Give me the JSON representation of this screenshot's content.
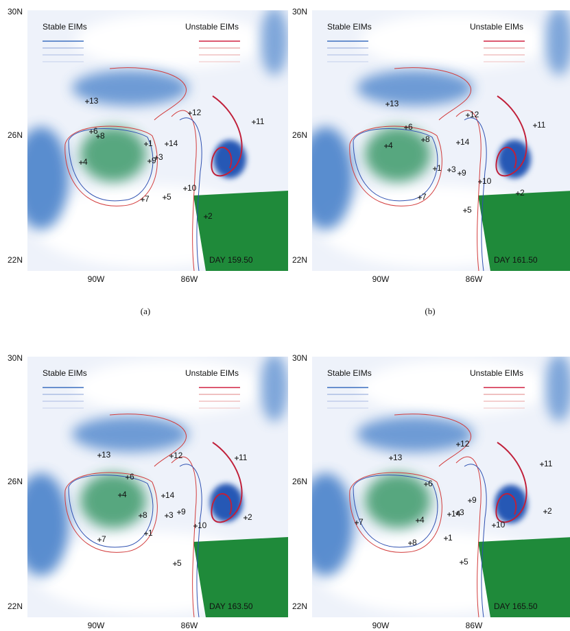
{
  "panels": [
    {
      "caption": "(a)",
      "lat_labels": [
        "30N",
        "26N",
        "22N"
      ],
      "lon_labels": [
        "90W",
        "86W"
      ],
      "legend": {
        "stable": "Stable EIMs",
        "unstable": "Unstable EIMs"
      },
      "day": "DAY 159.50",
      "points": [
        "13",
        "6",
        "8",
        "4",
        "1",
        "14",
        "9",
        "3",
        "12",
        "11",
        "10",
        "5",
        "7",
        "2"
      ]
    },
    {
      "caption": "(b)",
      "lat_labels": [
        "30N",
        "26N",
        "22N"
      ],
      "lon_labels": [
        "90W",
        "86W"
      ],
      "legend": {
        "stable": "Stable EIMs",
        "unstable": "Unstable EIMs"
      },
      "day": "DAY 161.50",
      "points": [
        "13",
        "6",
        "8",
        "4",
        "12",
        "11",
        "14",
        "1",
        "3",
        "9",
        "10",
        "2",
        "7",
        "5"
      ]
    },
    {
      "lat_labels": [
        "30N",
        "26N",
        "22N"
      ],
      "lon_labels": [
        "90W",
        "86W"
      ],
      "legend": {
        "stable": "Stable EIMs",
        "unstable": "Unstable EIMs"
      },
      "day": "DAY 163.50",
      "points": [
        "13",
        "12",
        "11",
        "6",
        "4",
        "14",
        "8",
        "3",
        "9",
        "1",
        "10",
        "2",
        "7",
        "5"
      ]
    },
    {
      "lat_labels": [
        "30N",
        "26N",
        "22N"
      ],
      "lon_labels": [
        "90W",
        "86W"
      ],
      "legend": {
        "stable": "Stable EIMs",
        "unstable": "Unstable EIMs"
      },
      "day": "DAY 165.50",
      "points": [
        "13",
        "12",
        "11",
        "6",
        "9",
        "4",
        "14",
        "3",
        "2",
        "10",
        "1",
        "8",
        "7",
        "5"
      ]
    }
  ]
}
